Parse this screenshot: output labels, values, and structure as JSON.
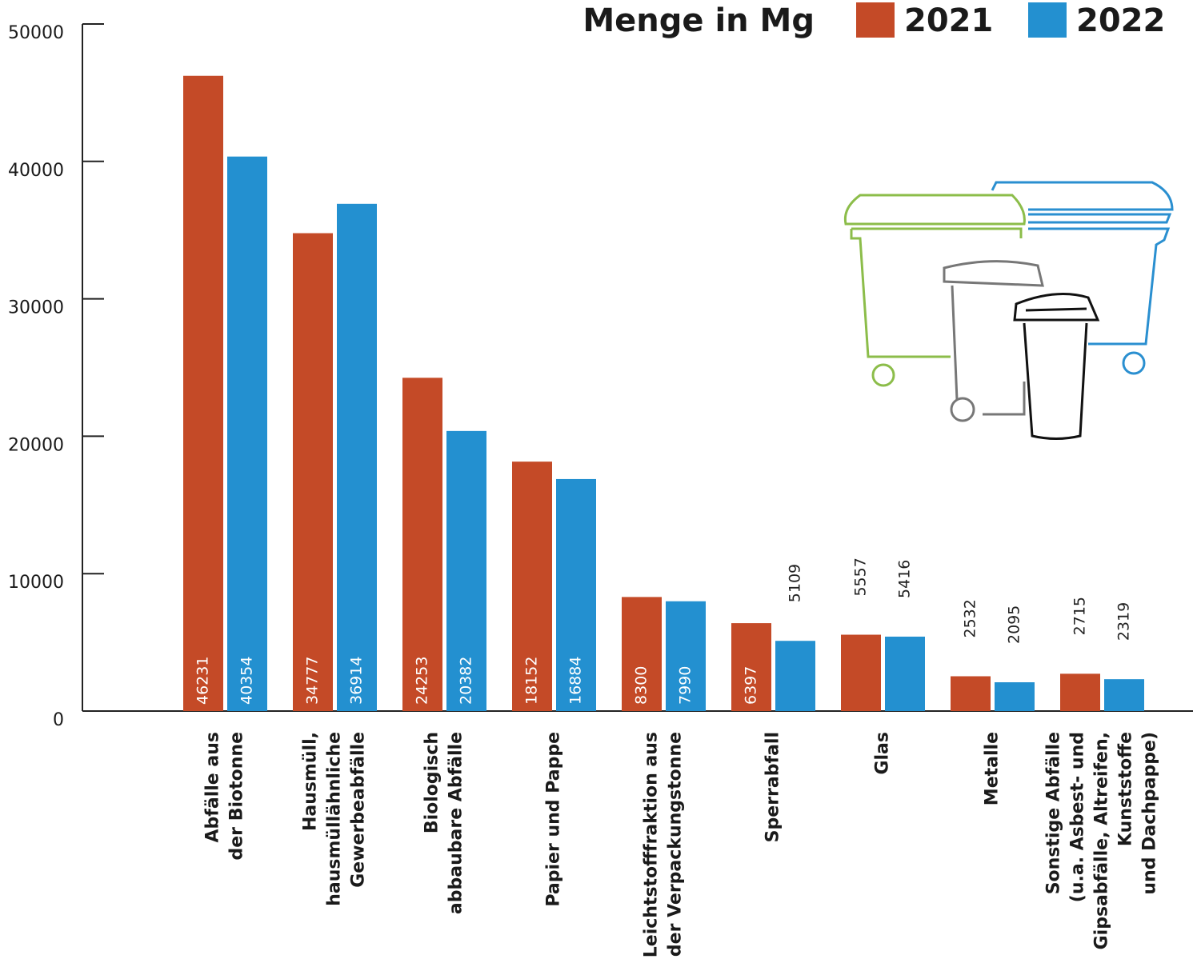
{
  "chart_data": {
    "type": "bar",
    "legend_title": "Menge in Mg",
    "categories": [
      "Abfälle aus\nder Biotonne",
      "Hausmüll,\nhausmüllähnliche\nGewerbeabfälle",
      "Biologisch\nabbaubare Abfälle",
      "Papier und Pappe",
      "Leichtstofffraktion aus\nder Verpackungstonne",
      "Sperrabfall",
      "Glas",
      "Metalle",
      "Sonstige Abfälle\n(u.a. Asbest- und\nGipsabfälle, Altreifen,\nKunststoffe\nund Dachpappe)"
    ],
    "series": [
      {
        "name": "2021",
        "color": "#c44a27",
        "values": [
          46231,
          34777,
          24253,
          18152,
          8300,
          6397,
          5557,
          2532,
          2715
        ]
      },
      {
        "name": "2022",
        "color": "#2390d0",
        "values": [
          40354,
          36914,
          20382,
          16884,
          7990,
          5109,
          5416,
          2095,
          2319
        ]
      }
    ],
    "ylim": [
      0,
      50000
    ],
    "yticks": [
      0,
      10000,
      20000,
      30000,
      40000,
      50000
    ],
    "legend": "top-right"
  }
}
